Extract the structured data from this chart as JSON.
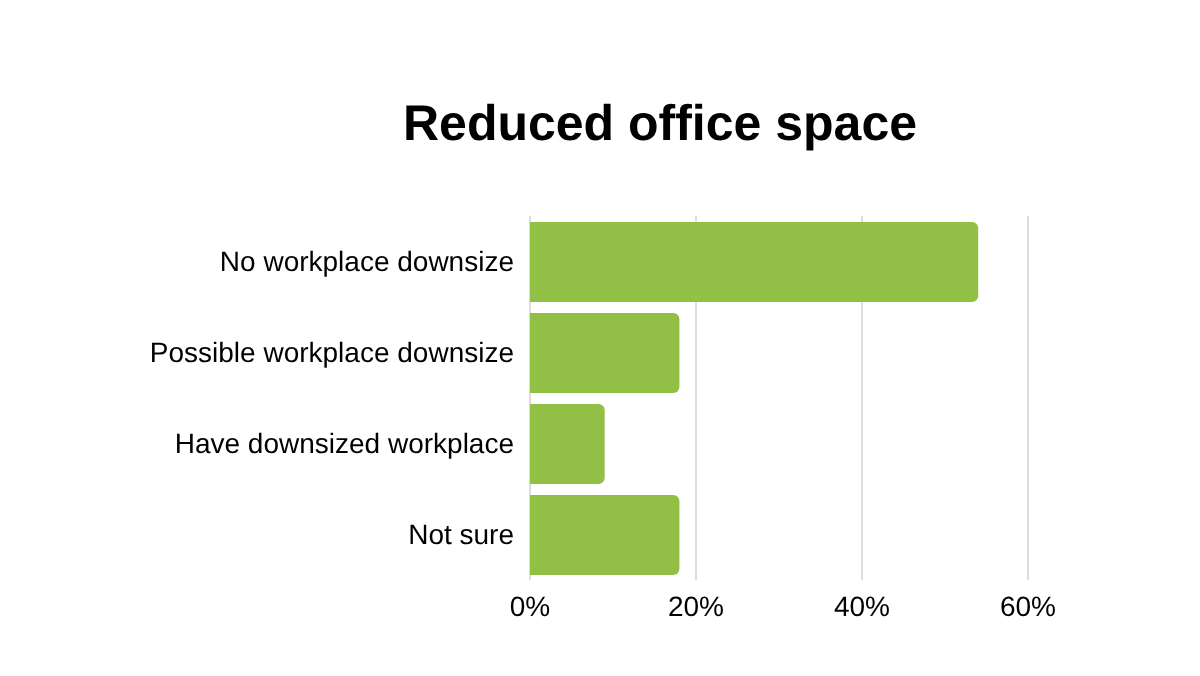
{
  "chart_data": {
    "type": "bar",
    "orientation": "horizontal",
    "title": "Reduced office space",
    "categories": [
      "No workplace downsize",
      "Possible workplace downsize",
      "Have downsized workplace",
      "Not sure"
    ],
    "values": [
      54,
      18,
      9,
      18
    ],
    "color": "#92c047",
    "xlim": [
      0,
      60
    ],
    "xticks": [
      {
        "value": 0,
        "label": "0%"
      },
      {
        "value": 20,
        "label": "20%"
      },
      {
        "value": 40,
        "label": "40%"
      },
      {
        "value": 60,
        "label": "60%"
      }
    ],
    "grid": "x"
  }
}
